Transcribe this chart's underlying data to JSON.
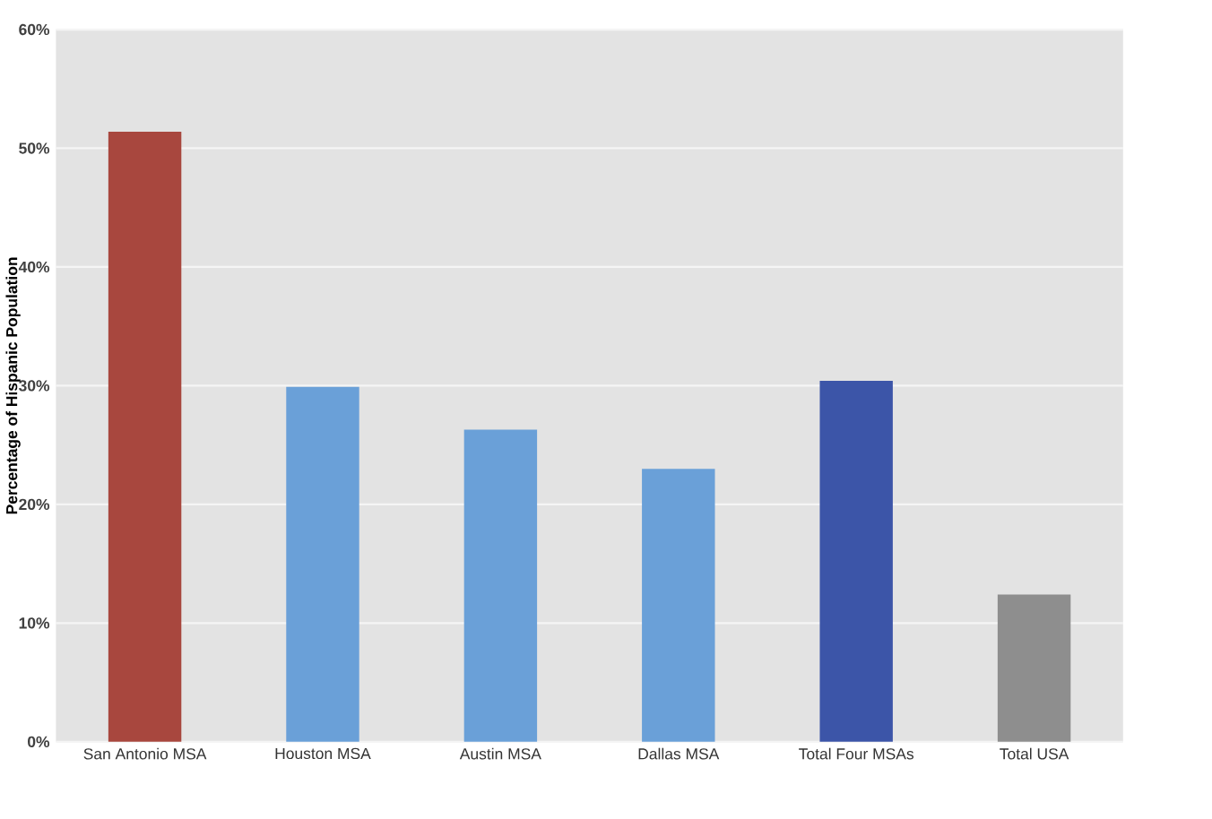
{
  "chart_data": {
    "type": "bar",
    "ylabel": "Percentage of Hispanic Population",
    "categories": [
      "San Antonio MSA",
      "Houston MSA",
      "Austin MSA",
      "Dallas MSA",
      "Total Four MSAs",
      "Total USA"
    ],
    "values": [
      51.4,
      29.9,
      26.3,
      23.0,
      30.4,
      12.4
    ],
    "colors": [
      "#a8473e",
      "#6aa0d8",
      "#6aa0d8",
      "#6aa0d8",
      "#3c55a8",
      "#8e8e8e"
    ],
    "ylim": [
      0,
      60
    ],
    "yticks": [
      {
        "value": 0,
        "label": "0%"
      },
      {
        "value": 10,
        "label": "10%"
      },
      {
        "value": 20,
        "label": "20%"
      },
      {
        "value": 30,
        "label": "30%"
      },
      {
        "value": 40,
        "label": "40%"
      },
      {
        "value": 50,
        "label": "50%"
      },
      {
        "value": 60,
        "label": "60%"
      }
    ],
    "grid": "y"
  }
}
